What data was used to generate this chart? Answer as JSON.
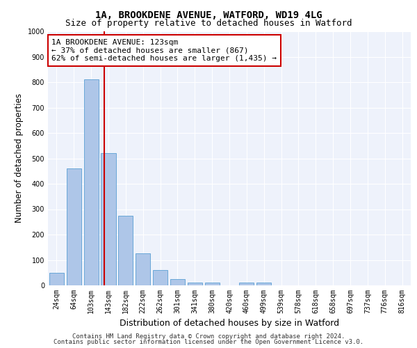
{
  "title1": "1A, BROOKDENE AVENUE, WATFORD, WD19 4LG",
  "title2": "Size of property relative to detached houses in Watford",
  "xlabel": "Distribution of detached houses by size in Watford",
  "ylabel": "Number of detached properties",
  "footer1": "Contains HM Land Registry data © Crown copyright and database right 2024.",
  "footer2": "Contains public sector information licensed under the Open Government Licence v3.0.",
  "bin_labels": [
    "24sqm",
    "64sqm",
    "103sqm",
    "143sqm",
    "182sqm",
    "222sqm",
    "262sqm",
    "301sqm",
    "341sqm",
    "380sqm",
    "420sqm",
    "460sqm",
    "499sqm",
    "539sqm",
    "578sqm",
    "618sqm",
    "658sqm",
    "697sqm",
    "737sqm",
    "776sqm",
    "816sqm"
  ],
  "bar_values": [
    50,
    460,
    810,
    520,
    275,
    125,
    60,
    25,
    10,
    10,
    0,
    10,
    10,
    0,
    0,
    0,
    0,
    0,
    0,
    0,
    0
  ],
  "bar_color": "#aec6e8",
  "bar_edge_color": "#5a9fd4",
  "vline_x": 2.77,
  "vline_color": "#cc0000",
  "annotation_text": "1A BROOKDENE AVENUE: 123sqm\n← 37% of detached houses are smaller (867)\n62% of semi-detached houses are larger (1,435) →",
  "annotation_box_color": "#ffffff",
  "annotation_box_edge": "#cc0000",
  "annotation_fontsize": 8.0,
  "ylim": [
    0,
    1000
  ],
  "yticks": [
    0,
    100,
    200,
    300,
    400,
    500,
    600,
    700,
    800,
    900,
    1000
  ],
  "background_color": "#eef2fb",
  "grid_color": "#ffffff",
  "title1_fontsize": 10,
  "title2_fontsize": 9,
  "xlabel_fontsize": 9,
  "ylabel_fontsize": 8.5,
  "tick_fontsize": 7,
  "footer_fontsize": 6.5
}
